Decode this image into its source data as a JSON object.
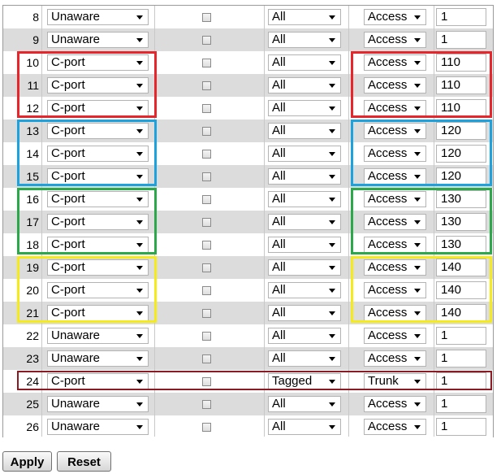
{
  "rows": [
    {
      "port": "8",
      "type": "Unaware",
      "frame": "All",
      "mode": "Access",
      "pvid": "1"
    },
    {
      "port": "9",
      "type": "Unaware",
      "frame": "All",
      "mode": "Access",
      "pvid": "1"
    },
    {
      "port": "10",
      "type": "C-port",
      "frame": "All",
      "mode": "Access",
      "pvid": "110"
    },
    {
      "port": "11",
      "type": "C-port",
      "frame": "All",
      "mode": "Access",
      "pvid": "110"
    },
    {
      "port": "12",
      "type": "C-port",
      "frame": "All",
      "mode": "Access",
      "pvid": "110"
    },
    {
      "port": "13",
      "type": "C-port",
      "frame": "All",
      "mode": "Access",
      "pvid": "120"
    },
    {
      "port": "14",
      "type": "C-port",
      "frame": "All",
      "mode": "Access",
      "pvid": "120"
    },
    {
      "port": "15",
      "type": "C-port",
      "frame": "All",
      "mode": "Access",
      "pvid": "120"
    },
    {
      "port": "16",
      "type": "C-port",
      "frame": "All",
      "mode": "Access",
      "pvid": "130"
    },
    {
      "port": "17",
      "type": "C-port",
      "frame": "All",
      "mode": "Access",
      "pvid": "130"
    },
    {
      "port": "18",
      "type": "C-port",
      "frame": "All",
      "mode": "Access",
      "pvid": "130"
    },
    {
      "port": "19",
      "type": "C-port",
      "frame": "All",
      "mode": "Access",
      "pvid": "140"
    },
    {
      "port": "20",
      "type": "C-port",
      "frame": "All",
      "mode": "Access",
      "pvid": "140"
    },
    {
      "port": "21",
      "type": "C-port",
      "frame": "All",
      "mode": "Access",
      "pvid": "140"
    },
    {
      "port": "22",
      "type": "Unaware",
      "frame": "All",
      "mode": "Access",
      "pvid": "1"
    },
    {
      "port": "23",
      "type": "Unaware",
      "frame": "All",
      "mode": "Access",
      "pvid": "1"
    },
    {
      "port": "24",
      "type": "C-port",
      "frame": "Tagged",
      "mode": "Trunk",
      "pvid": "1"
    },
    {
      "port": "25",
      "type": "Unaware",
      "frame": "All",
      "mode": "Access",
      "pvid": "1"
    },
    {
      "port": "26",
      "type": "Unaware",
      "frame": "All",
      "mode": "Access",
      "pvid": "1"
    }
  ],
  "highlights": [
    {
      "color": "red",
      "first_row": 2,
      "last_row": 4
    },
    {
      "color": "blue",
      "first_row": 5,
      "last_row": 7
    },
    {
      "color": "green",
      "first_row": 8,
      "last_row": 10
    },
    {
      "color": "yellow",
      "first_row": 11,
      "last_row": 13
    },
    {
      "color": "dark",
      "first_row": 16,
      "last_row": 16
    }
  ],
  "buttons": {
    "apply": "Apply",
    "reset": "Reset"
  },
  "icons": {
    "dropdown": "chevron-down-icon"
  }
}
